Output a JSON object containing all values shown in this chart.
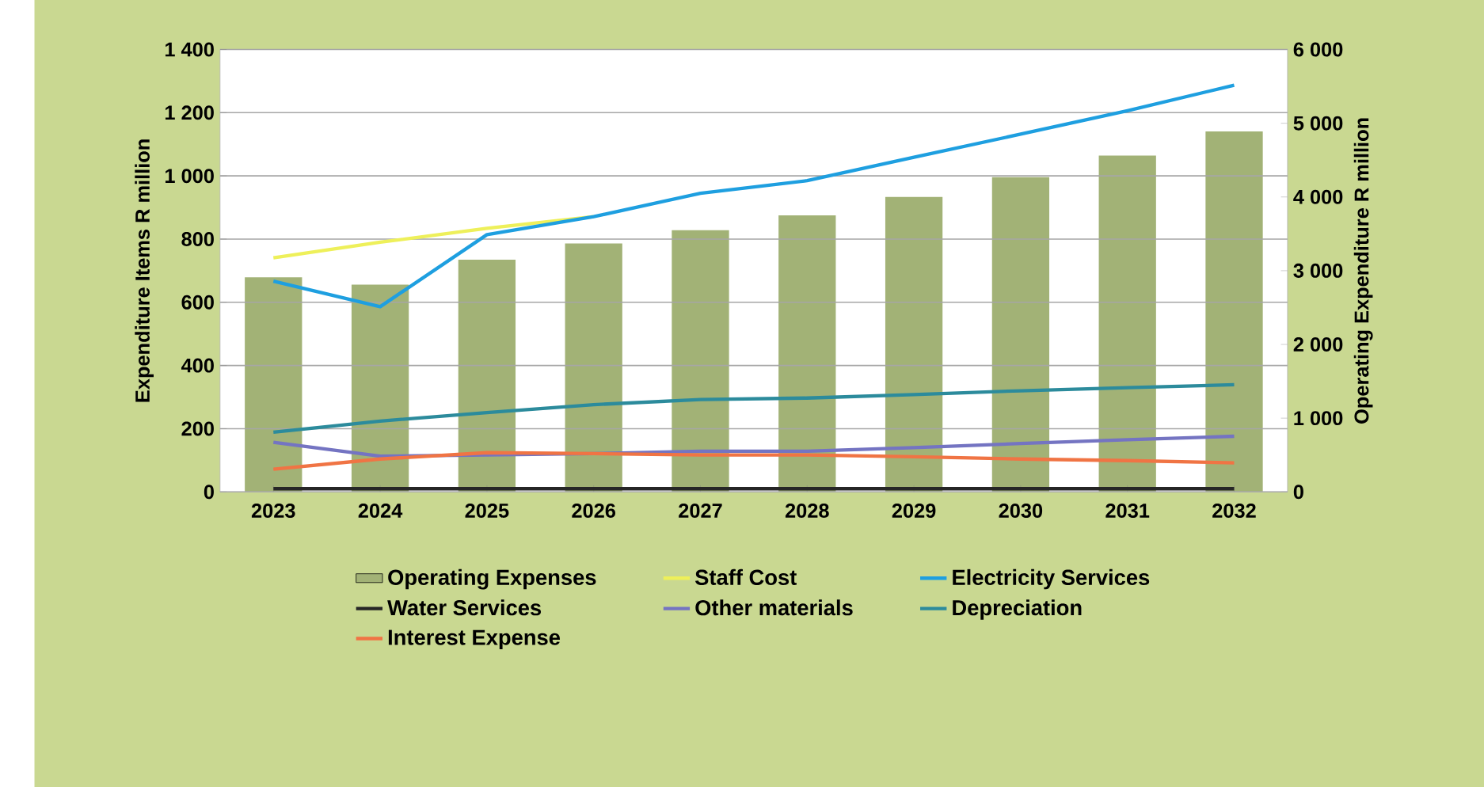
{
  "chart_data": {
    "type": "line",
    "ylabel": "Expenditure Items R million",
    "y2label": "Operating Expenditure R million",
    "categories": [
      "2023",
      "2024",
      "2025",
      "2026",
      "2027",
      "2028",
      "2029",
      "2030",
      "2031",
      "2032"
    ],
    "series": [
      {
        "name": "Operating Expenses",
        "type": "bar",
        "axis": "y2",
        "color": "#a2b276",
        "values": [
          2910,
          2810,
          3150,
          3370,
          3550,
          3750,
          4000,
          4270,
          4560,
          4890
        ]
      },
      {
        "name": "Staff Cost",
        "color": "#eef05a",
        "values": [
          741,
          790,
          834,
          871,
          null,
          null,
          null,
          null,
          null,
          null
        ]
      },
      {
        "name": "Electricity Services",
        "color": "#1e9fe0",
        "values": [
          667,
          586,
          814,
          871,
          945,
          985,
          1059,
          1132,
          1206,
          1287
        ]
      },
      {
        "name": "Water Services",
        "color": "#262626",
        "values": [
          10,
          10,
          10,
          10,
          10,
          10,
          10,
          10,
          10,
          10
        ]
      },
      {
        "name": "Other materials",
        "color": "#7474c2",
        "values": [
          157,
          113,
          117,
          121,
          129,
          129,
          140,
          153,
          165,
          176
        ]
      },
      {
        "name": "Depreciation",
        "color": "#2c8b9c",
        "values": [
          189,
          224,
          251,
          276,
          292,
          297,
          308,
          320,
          330,
          339
        ]
      },
      {
        "name": "Interest Expense",
        "color": "#f07444",
        "values": [
          72,
          104,
          124,
          121,
          117,
          117,
          111,
          104,
          99,
          92
        ]
      }
    ],
    "ylim": [
      0,
      1400
    ],
    "yticks": [
      0,
      200,
      400,
      600,
      800,
      {
        "value": 1000,
        "label": "1 000"
      },
      {
        "value": 1200,
        "label": "1 200"
      },
      {
        "value": 1400,
        "label": "1 400"
      }
    ],
    "y2lim": [
      0,
      6000
    ],
    "y2ticks": [
      0,
      {
        "value": 1000,
        "label": "1 000"
      },
      {
        "value": 2000,
        "label": "2 000"
      },
      {
        "value": 3000,
        "label": "3 000"
      },
      {
        "value": 4000,
        "label": "4 000"
      },
      {
        "value": 5000,
        "label": "5 000"
      },
      {
        "value": 6000,
        "label": "6 000"
      }
    ],
    "grid": "y",
    "legend": "bottom"
  }
}
